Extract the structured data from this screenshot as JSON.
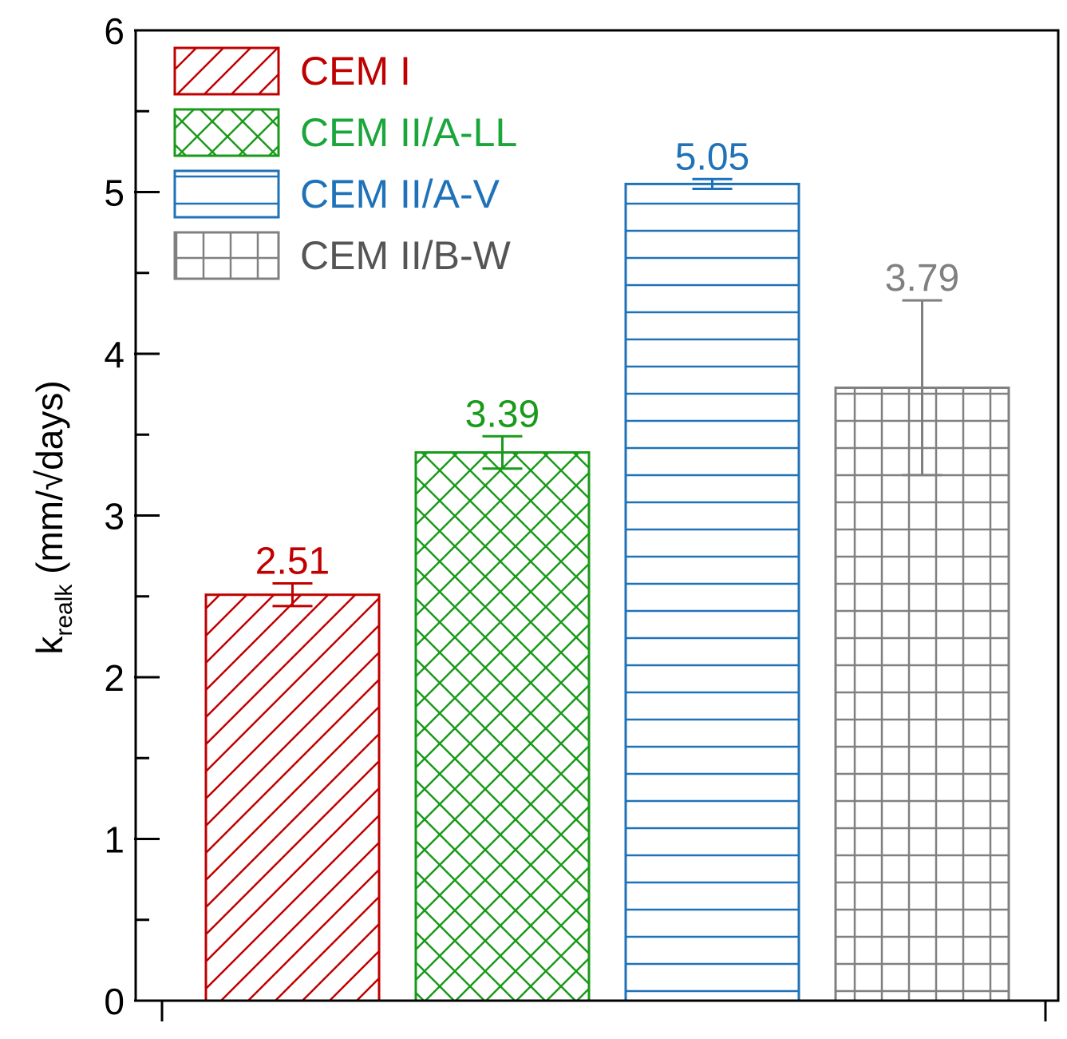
{
  "chart_data": {
    "type": "bar",
    "title": "",
    "xlabel": "",
    "ylabel_main": "k",
    "ylabel_sub": "realk",
    "ylabel_units": " (mm/√days)",
    "ylim": [
      0,
      6
    ],
    "major_ticks": [
      0,
      1,
      2,
      3,
      4,
      5,
      6
    ],
    "minor_ticks": [
      0.5,
      1.5,
      2.5,
      3.5,
      4.5,
      5.5
    ],
    "tick_labels": [
      "0",
      "1",
      "2",
      "3",
      "4",
      "5",
      "6"
    ],
    "legend_position": "top-left",
    "grid": false,
    "categories": [
      "CEM I",
      "CEM II/A-LL",
      "CEM II/A-V",
      "CEM II/B-W"
    ],
    "values": [
      2.51,
      3.39,
      5.05,
      3.79
    ],
    "value_labels": [
      "2.51",
      "3.39",
      "5.05",
      "3.79"
    ],
    "errors": [
      0.07,
      0.1,
      0.03,
      0.54
    ],
    "colors": [
      "#c00000",
      "#1a9a1a",
      "#1f72b8",
      "#808080"
    ],
    "label_colors": [
      "#c00000",
      "#1a9a1a",
      "#1f72b8",
      "#808080"
    ],
    "legend_label_colors": [
      "#c00000",
      "#1aa63a",
      "#1f72b8",
      "#555555"
    ],
    "patterns": [
      "diagonal",
      "crosshatch-diagonal",
      "horizontal",
      "grid"
    ]
  }
}
